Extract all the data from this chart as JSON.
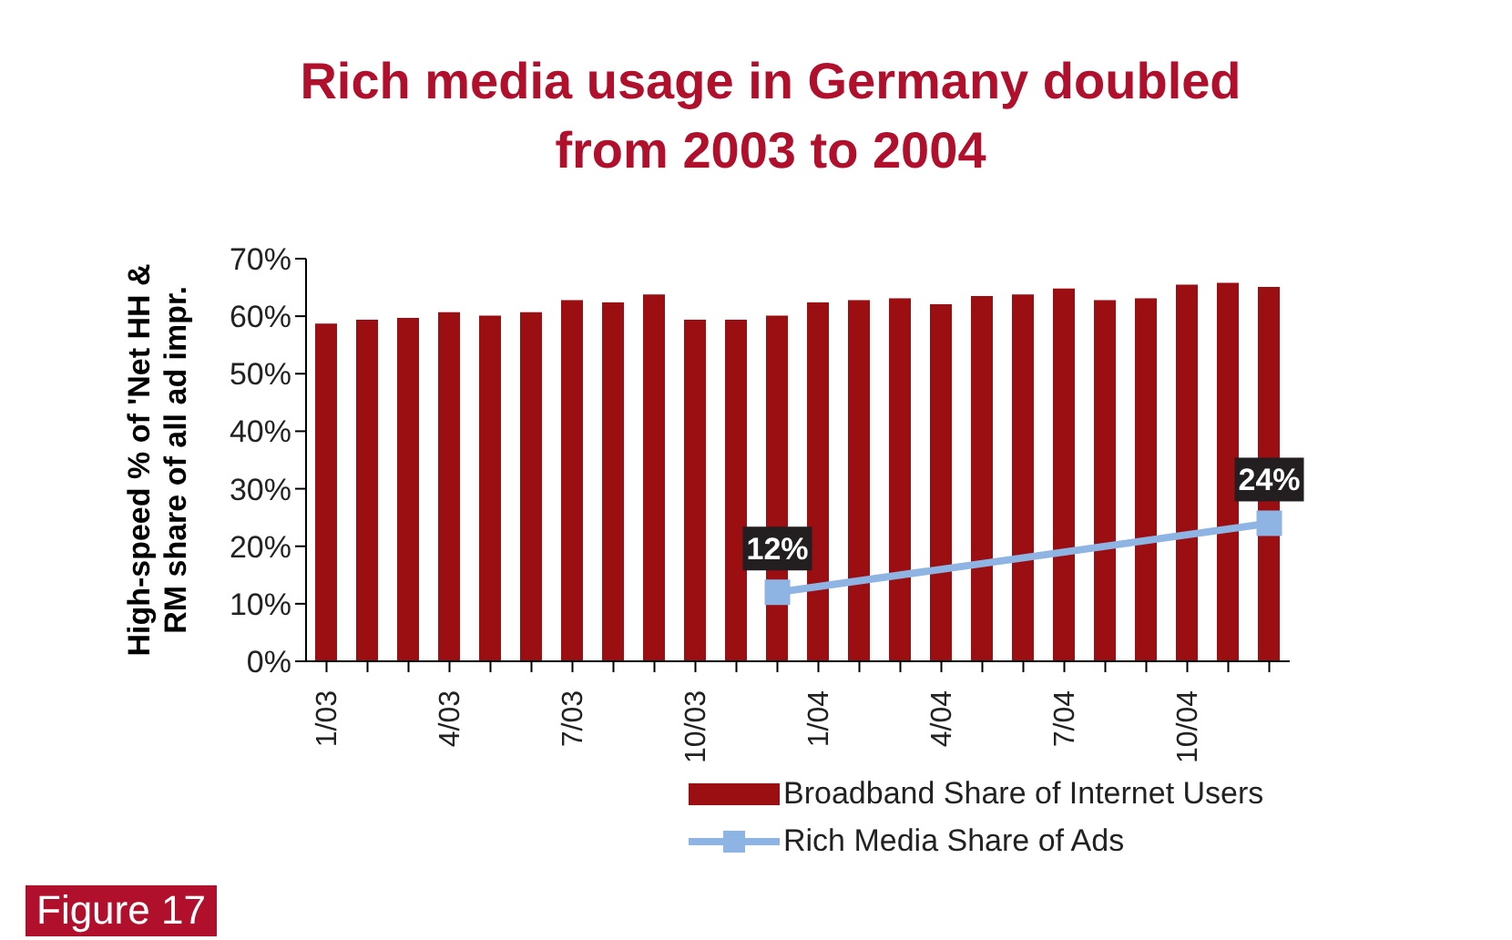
{
  "chart_data": {
    "type": "bar",
    "title": "Rich media usage in Germany doubled from 2003 to 2004",
    "ylabel": "High-speed % of 'Net HH & RM share of all ad impr.",
    "categories": [
      "1/03",
      null,
      null,
      "4/03",
      null,
      null,
      "7/03",
      null,
      null,
      "10/03",
      null,
      null,
      "1/04",
      null,
      null,
      "4/04",
      null,
      null,
      "7/04",
      null,
      null,
      "10/04",
      null,
      null
    ],
    "series": [
      {
        "name": "Broadband Share of Internet Users",
        "color": "#9b0e12",
        "values": [
          58.7,
          59.4,
          59.7,
          60.7,
          60.1,
          60.7,
          62.8,
          62.4,
          63.8,
          59.4,
          59.4,
          60.1,
          62.4,
          62.8,
          63.1,
          62.1,
          63.5,
          63.8,
          64.8,
          62.8,
          63.1,
          65.5,
          65.8,
          65.1
        ]
      },
      {
        "name": "Rich Media Share of Ads",
        "type": "line",
        "color": "#8db4e2",
        "marker": "square",
        "line_style": "solid",
        "values": [
          null,
          null,
          null,
          null,
          null,
          null,
          null,
          null,
          null,
          null,
          null,
          12,
          null,
          null,
          null,
          null,
          null,
          null,
          null,
          null,
          null,
          null,
          null,
          24
        ],
        "value_labels": [
          null,
          null,
          null,
          null,
          null,
          null,
          null,
          null,
          null,
          null,
          null,
          "12%",
          null,
          null,
          null,
          null,
          null,
          null,
          null,
          null,
          null,
          null,
          null,
          "24%"
        ]
      }
    ],
    "ylim": [
      0,
      70
    ],
    "yticks": [
      {
        "value": 0,
        "label": "0%"
      },
      {
        "value": 10,
        "label": "10%"
      },
      {
        "value": 20,
        "label": "20%"
      },
      {
        "value": 30,
        "label": "30%"
      },
      {
        "value": 40,
        "label": "40%"
      },
      {
        "value": 50,
        "label": "50%"
      },
      {
        "value": 60,
        "label": "60%"
      },
      {
        "value": 70,
        "label": "70%"
      }
    ],
    "grid": false,
    "legend": "bottom",
    "annotations": [
      "Figure 17"
    ]
  }
}
